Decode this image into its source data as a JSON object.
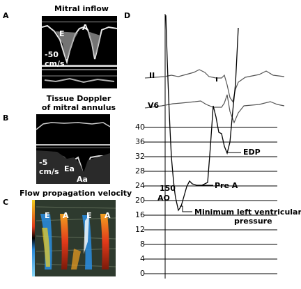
{
  "panels": {
    "a": {
      "letter": "A",
      "title": "Mitral inflow",
      "wave_e": "E",
      "wave_a": "A",
      "velocity_value": "-50",
      "velocity_unit": "cm/s"
    },
    "b": {
      "letter": "B",
      "title_line1": "Tissue Doppler",
      "title_line2": "of mitral annulus",
      "velocity_value": "-5",
      "velocity_unit": "cm/s",
      "wave_ea": "Ea",
      "wave_aa": "Aa"
    },
    "c": {
      "letter": "C",
      "title": "Flow propagation velocity",
      "wave_labels": [
        "E",
        "A",
        "E",
        "A"
      ]
    },
    "d": {
      "letter": "D",
      "ecg_lead_1": "II",
      "ecg_lead_2": "V6",
      "y_ticks": [
        "40",
        "36",
        "32",
        "28",
        "24",
        "20",
        "16",
        "12",
        "8",
        "4",
        "0"
      ],
      "aortic_label": "AO",
      "aortic_value": "150",
      "annotations": {
        "edp": "EDP",
        "pre_a": "Pre A",
        "min_lv_line1": "Minimum left ventricular",
        "min_lv_line2": "pressure"
      }
    }
  },
  "colors": {
    "echo_background": "#000000",
    "echo_trace": "#e8e8e8",
    "flow_red": "#e23a1a",
    "flow_orange": "#f2a020",
    "flow_blue": "#2a8ad8",
    "flow_grey": "#6a7a6a",
    "ink": "#000000",
    "ecg_trace": "#555555"
  }
}
